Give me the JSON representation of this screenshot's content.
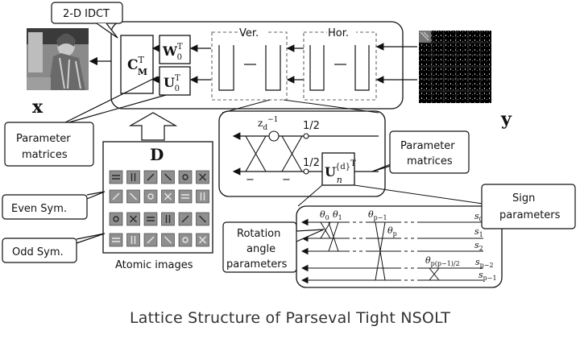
{
  "labels": {
    "idct": "2-D IDCT",
    "ver": "Ver.",
    "hor": "Hor.",
    "x": "x",
    "y": "y",
    "d": "D",
    "param_left_1": "Parameter",
    "param_left_2": "matrices",
    "param_right_1": "Parameter",
    "param_right_2": "matrices",
    "even_sym": "Even Sym.",
    "odd_sym": "Odd Sym.",
    "atomic_images": "Atomic images",
    "sign_1": "Sign",
    "sign_2": "parameters",
    "rot_1": "Rotation",
    "rot_2": "angle",
    "rot_3": "parameters",
    "half_top": "1/2",
    "half_bottom": "1/2",
    "minus": "−",
    "caption": "Lattice Structure of Parseval Tight NSOLT"
  },
  "math": {
    "cm": "C",
    "cm_sup": "T",
    "cm_sub": "M",
    "w": "W",
    "w_sup": "T",
    "w_sub": "0",
    "u": "U",
    "u_sup": "T",
    "u_sub": "0",
    "z": "z",
    "z_sub": "d",
    "z_sup": "−1",
    "un": "U",
    "un_sub": "n",
    "un_sup": "{d}",
    "un_T": "T",
    "theta": "θ",
    "theta0_sub": "0",
    "theta1_sub": "1",
    "thetap1_sub": "p−1",
    "thetap_sub": "p",
    "thetaplast_sub": "p(p−1)/2",
    "s": "s",
    "s0_sub": "0",
    "s1_sub": "1",
    "s2_sub": "2",
    "sp2_sub": "p−2",
    "sp1_sub": "p−1"
  }
}
